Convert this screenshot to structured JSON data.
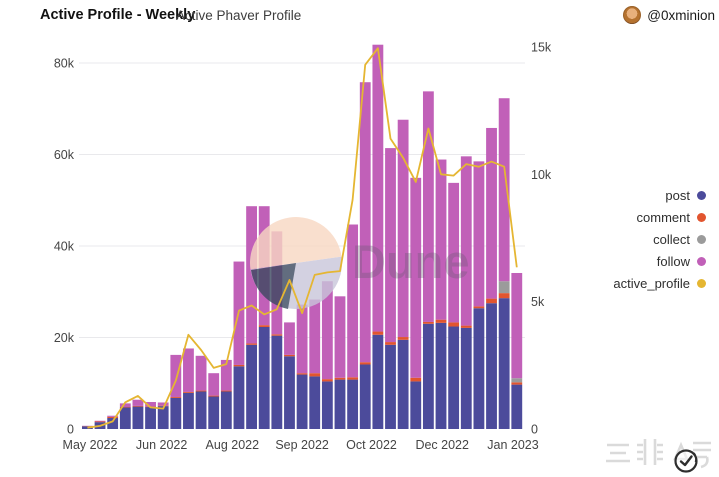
{
  "header": {
    "title": "Active Profile - Weekly",
    "subtitle": "Active Phaver Profile",
    "author_handle": "@0xminion",
    "avatar_icon": "monkey-avatar-icon"
  },
  "legend": [
    {
      "label": "post",
      "color": "#4c4b9b"
    },
    {
      "label": "comment",
      "color": "#e2552f"
    },
    {
      "label": "collect",
      "color": "#9b9b9b"
    },
    {
      "label": "follow",
      "color": "#c160b8"
    },
    {
      "label": "active_profile",
      "color": "#e5b632"
    }
  ],
  "watermark": {
    "brand": "Dune",
    "corner_text": "三非△号",
    "check_icon": "✓"
  },
  "chart_data": {
    "type": "bar",
    "subtype": "stacked-bars-with-line",
    "units": "thousands",
    "title": "Active Profile - Weekly",
    "left_axis": {
      "label": "",
      "ticks": [
        {
          "label": "0",
          "v": 0
        },
        {
          "label": "20k",
          "v": 20
        },
        {
          "label": "40k",
          "v": 40
        },
        {
          "label": "60k",
          "v": 60
        },
        {
          "label": "80k",
          "v": 80
        }
      ],
      "max": 86
    },
    "right_axis": {
      "label": "",
      "ticks": [
        {
          "label": "0",
          "v": 0
        },
        {
          "label": "5k",
          "v": 5
        },
        {
          "label": "10k",
          "v": 10
        },
        {
          "label": "15k",
          "v": 15
        }
      ],
      "max": 15.7
    },
    "x_ticks": [
      {
        "label": "May 2022",
        "pos": 0.018
      },
      {
        "label": "Jun 2022",
        "pos": 0.18
      },
      {
        "label": "Aug 2022",
        "pos": 0.34
      },
      {
        "label": "Sep 2022",
        "pos": 0.498
      },
      {
        "label": "Oct 2022",
        "pos": 0.655
      },
      {
        "label": "Dec 2022",
        "pos": 0.815
      },
      {
        "label": "Jan 2023",
        "pos": 0.975
      }
    ],
    "grid": true,
    "legend_position": "right",
    "series": [
      {
        "name": "post",
        "axis": "left",
        "color": "#4c4b9b",
        "values": [
          0.6,
          1.5,
          2.4,
          4.7,
          4.9,
          4.8,
          5.0,
          6.8,
          7.9,
          8.2,
          7.1,
          8.2,
          13.7,
          18.4,
          22.3,
          20.4,
          15.9,
          11.9,
          11.5,
          10.4,
          10.8,
          10.8,
          14.1,
          20.6,
          18.4,
          19.5,
          10.4,
          23.0,
          23.2,
          22.4,
          22.1,
          26.4,
          27.5,
          28.6,
          9.7
        ]
      },
      {
        "name": "comment",
        "axis": "left",
        "color": "#e2552f",
        "values": [
          0.05,
          0.15,
          0.25,
          0.1,
          0.15,
          0.1,
          0.1,
          0.2,
          0.2,
          0.2,
          0.2,
          0.2,
          0.3,
          0.3,
          0.4,
          0.3,
          0.3,
          0.3,
          0.7,
          0.5,
          0.4,
          0.5,
          0.5,
          0.7,
          0.6,
          0.6,
          0.8,
          0.4,
          0.7,
          0.9,
          0.5,
          0.4,
          1.0,
          1.1,
          0.5
        ]
      },
      {
        "name": "collect",
        "axis": "left",
        "color": "#9b9b9b",
        "values": [
          0,
          0,
          0,
          0,
          0,
          0,
          0,
          0,
          0,
          0,
          0,
          0,
          0,
          0,
          0,
          0,
          0,
          0,
          0,
          0,
          0,
          0,
          0,
          0,
          0,
          0,
          0,
          0,
          0,
          0,
          0,
          0,
          0,
          2.6,
          0.9
        ]
      },
      {
        "name": "follow",
        "axis": "left",
        "color": "#c160b8",
        "values": [
          0.05,
          0.15,
          0.25,
          0.8,
          1.35,
          1.0,
          0.7,
          9.2,
          9.5,
          7.6,
          4.9,
          6.7,
          22.6,
          30.0,
          26.0,
          22.5,
          7.1,
          15.0,
          16.1,
          21.4,
          17.8,
          33.4,
          61.2,
          62.7,
          42.4,
          47.5,
          43.7,
          50.4,
          35.0,
          30.5,
          37.0,
          31.7,
          37.3,
          40.0,
          23.0
        ]
      }
    ],
    "line": {
      "name": "active_profile",
      "axis": "right",
      "color": "#e5b632",
      "values": [
        0.05,
        0.12,
        0.3,
        1.05,
        1.3,
        0.85,
        0.8,
        1.9,
        3.7,
        3.1,
        2.4,
        2.55,
        4.65,
        4.85,
        4.5,
        4.7,
        5.85,
        4.55,
        6.05,
        6.15,
        6.2,
        9.0,
        14.3,
        14.95,
        11.4,
        10.65,
        9.7,
        11.8,
        10.0,
        9.95,
        10.4,
        10.3,
        10.5,
        10.3,
        6.35
      ]
    }
  }
}
